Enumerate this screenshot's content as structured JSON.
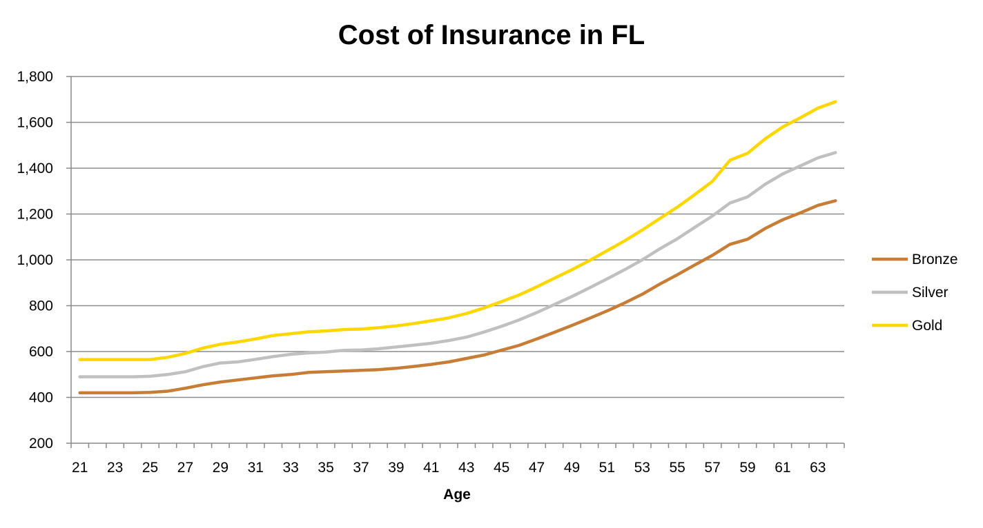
{
  "chart_data": {
    "type": "line",
    "title": "Cost of Insurance in FL",
    "xlabel": "Age",
    "ylabel": "",
    "ylim": [
      200,
      1800
    ],
    "yticks": [
      200,
      400,
      600,
      800,
      1000,
      1200,
      1400,
      1600,
      1800
    ],
    "ytick_labels": [
      "200",
      "400",
      "600",
      "800",
      "1,000",
      "1,200",
      "1,400",
      "1,600",
      "1,800"
    ],
    "x": [
      21,
      22,
      23,
      24,
      25,
      26,
      27,
      28,
      29,
      30,
      31,
      32,
      33,
      34,
      35,
      36,
      37,
      38,
      39,
      40,
      41,
      42,
      43,
      44,
      45,
      46,
      47,
      48,
      49,
      50,
      51,
      52,
      53,
      54,
      55,
      56,
      57,
      58,
      59,
      60,
      61,
      62,
      63,
      64
    ],
    "xtick_labels": [
      "21",
      "23",
      "25",
      "27",
      "29",
      "31",
      "33",
      "35",
      "37",
      "39",
      "41",
      "43",
      "45",
      "47",
      "49",
      "51",
      "53",
      "55",
      "57",
      "59",
      "61",
      "63"
    ],
    "grid": true,
    "legend_position": "right",
    "series": [
      {
        "name": "Bronze",
        "color": "#C87D36",
        "values": [
          420,
          420,
          420,
          420,
          422,
          427,
          440,
          455,
          467,
          476,
          485,
          494,
          500,
          509,
          512,
          515,
          518,
          521,
          527,
          535,
          544,
          555,
          570,
          585,
          606,
          627,
          655,
          684,
          714,
          745,
          777,
          812,
          850,
          894,
          935,
          978,
          1020,
          1068,
          1090,
          1137,
          1175,
          1205,
          1238,
          1258
        ]
      },
      {
        "name": "Silver",
        "color": "#C0C0C0",
        "values": [
          490,
          490,
          490,
          490,
          492,
          500,
          512,
          534,
          550,
          555,
          566,
          578,
          588,
          594,
          598,
          605,
          607,
          612,
          620,
          628,
          636,
          648,
          663,
          685,
          710,
          738,
          770,
          805,
          840,
          878,
          917,
          957,
          1000,
          1048,
          1092,
          1142,
          1192,
          1248,
          1275,
          1330,
          1375,
          1410,
          1445,
          1468
        ]
      },
      {
        "name": "Gold",
        "color": "#FFD700",
        "values": [
          565,
          565,
          565,
          565,
          565,
          575,
          592,
          615,
          632,
          642,
          655,
          670,
          678,
          686,
          690,
          696,
          698,
          704,
          712,
          722,
          734,
          747,
          766,
          790,
          818,
          847,
          882,
          920,
          957,
          997,
          1040,
          1083,
          1130,
          1180,
          1230,
          1285,
          1343,
          1435,
          1465,
          1528,
          1580,
          1620,
          1662,
          1690
        ]
      }
    ]
  }
}
